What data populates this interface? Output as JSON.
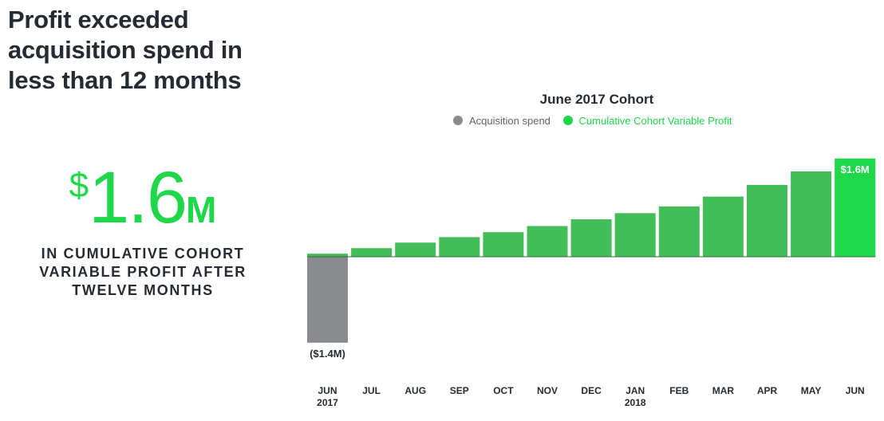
{
  "headline": {
    "line1": "Profit exceeded",
    "line2": "acquisition spend in",
    "line3": "less than 12 months"
  },
  "stat": {
    "currency": "$",
    "number": "1.6",
    "unit": "M",
    "caption_line1": "IN CUMULATIVE COHORT",
    "caption_line2": "VARIABLE PROFIT AFTER",
    "caption_line3": "TWELVE MONTHS"
  },
  "colors": {
    "acquisition": "#8a8b8e",
    "profit": "#43bd58",
    "highlight": "#1ed84a",
    "text": "#262b33"
  },
  "chart_data": {
    "type": "bar",
    "title": "June 2017 Cohort",
    "legend": [
      {
        "name": "Acquisition spend",
        "color": "#8a8b8e"
      },
      {
        "name": "Cumulative Cohort Variable Profit",
        "color": "#1ed84a"
      }
    ],
    "legend_position": "top-center",
    "categories": [
      [
        "JUN",
        "2017"
      ],
      [
        "JUL",
        ""
      ],
      [
        "AUG",
        ""
      ],
      [
        "SEP",
        ""
      ],
      [
        "OCT",
        ""
      ],
      [
        "NOV",
        ""
      ],
      [
        "DEC",
        ""
      ],
      [
        "JAN",
        "2018"
      ],
      [
        "FEB",
        ""
      ],
      [
        "MAR",
        ""
      ],
      [
        "APR",
        ""
      ],
      [
        "MAY",
        ""
      ],
      [
        "JUN",
        ""
      ]
    ],
    "series": [
      {
        "name": "Acquisition spend",
        "values": [
          -1.4,
          0,
          0,
          0,
          0,
          0,
          0,
          0,
          0,
          0,
          0,
          0,
          0
        ]
      },
      {
        "name": "Cumulative Cohort Variable Profit",
        "values": [
          0.05,
          0.14,
          0.23,
          0.32,
          0.4,
          0.5,
          0.61,
          0.71,
          0.82,
          0.98,
          1.17,
          1.39,
          1.6
        ]
      }
    ],
    "data_labels": [
      {
        "category_index": 0,
        "series": "Acquisition spend",
        "text": "($1.4M)"
      },
      {
        "category_index": 12,
        "series": "Cumulative Cohort Variable Profit",
        "text": "$1.6M"
      }
    ],
    "ylim": [
      -1.4,
      1.6
    ],
    "grid": false
  }
}
